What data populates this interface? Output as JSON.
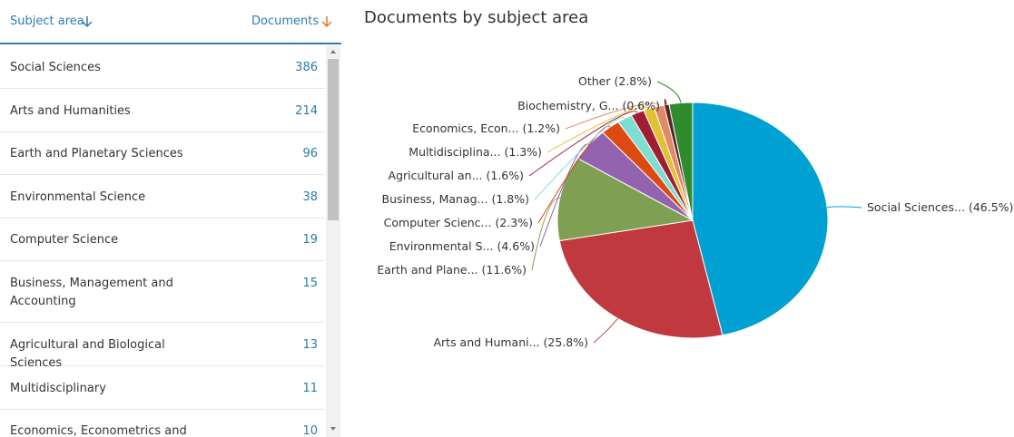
{
  "table": {
    "headers": [
      "Subject area",
      "Documents"
    ],
    "rows": [
      [
        "Social Sciences",
        386
      ],
      [
        "Arts and Humanities",
        214
      ],
      [
        "Earth and Planetary Sciences",
        96
      ],
      [
        "Environmental Science",
        38
      ],
      [
        "Computer Science",
        19
      ],
      [
        "Business, Management and Accounting",
        15
      ],
      [
        "Agricultural and Biological Sciences",
        13
      ],
      [
        "Multidisciplinary",
        11
      ],
      [
        "Economics, Econometrics and",
        10
      ]
    ]
  },
  "chart_data": {
    "type": "pie",
    "title": "Documents by subject area",
    "categories": [
      "Social Sciences...",
      "Arts and Humani...",
      "Earth and Plane...",
      "Environmental S...",
      "Computer Scienc...",
      "Business, Manag...",
      "Agricultural an...",
      "Multidisciplina...",
      "Economics, Econ...",
      "Biochemistry, G...",
      "Other"
    ],
    "values": [
      46.5,
      25.8,
      11.6,
      4.6,
      2.3,
      1.8,
      1.6,
      1.3,
      1.2,
      0.6,
      2.8
    ],
    "value_labels": [
      "(46.5%)",
      "(25.8%)",
      "(11.6%)",
      "(4.6%)",
      "(2.3%)",
      "(1.8%)",
      "(1.6%)",
      "(1.3%)",
      "(1.2%)",
      "(0.6%)",
      "(2.8%)"
    ],
    "colors": [
      "#00a0d2",
      "#c0393f",
      "#7f9f52",
      "#9463b0",
      "#dc4a10",
      "#80ddd2",
      "#a01e35",
      "#e2c232",
      "#e08a68",
      "#5a2424",
      "#2e8b2e"
    ]
  }
}
